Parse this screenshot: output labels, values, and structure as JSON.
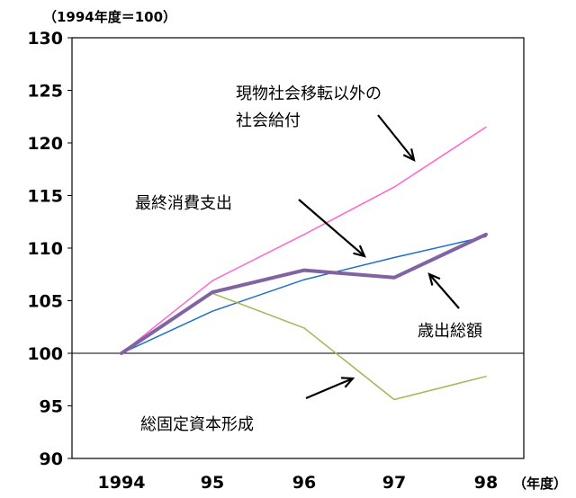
{
  "chart_data": {
    "type": "line",
    "y_unit_label": "（1994年度＝100）",
    "x_unit_label": "（年度）",
    "categories": [
      "1994",
      "95",
      "96",
      "97",
      "98"
    ],
    "ylim": [
      90,
      130
    ],
    "yticks": [
      90,
      95,
      100,
      105,
      110,
      115,
      120,
      125,
      130
    ],
    "reference_line": 100,
    "series": [
      {
        "name": "現物社会移転以外の社会給付",
        "color": "#ff66cc",
        "width": 1.5,
        "values": [
          100,
          106.9,
          111.3,
          115.8,
          121.5
        ]
      },
      {
        "name": "最終消費支出",
        "color": "#1f6fc9",
        "width": 1.5,
        "values": [
          100,
          104.0,
          107.0,
          109.1,
          111.1
        ]
      },
      {
        "name": "歳出総額",
        "color": "#8064a2",
        "width": 4,
        "values": [
          100,
          105.8,
          107.9,
          107.2,
          111.3
        ]
      },
      {
        "name": "総固定資本形成",
        "color": "#9bbb59",
        "width": 1.5,
        "values": [
          100,
          105.7,
          102.4,
          95.6,
          97.8
        ]
      }
    ],
    "annotations": [
      {
        "lines": [
          "現物社会移転以外の",
          "社会給付"
        ],
        "series": "現物社会移転以外の社会給付"
      },
      {
        "lines": [
          "最終消費支出"
        ],
        "series": "最終消費支出"
      },
      {
        "lines": [
          "歳出総額"
        ],
        "series": "歳出総額"
      },
      {
        "lines": [
          "総固定資本形成"
        ],
        "series": "総固定資本形成"
      }
    ]
  }
}
